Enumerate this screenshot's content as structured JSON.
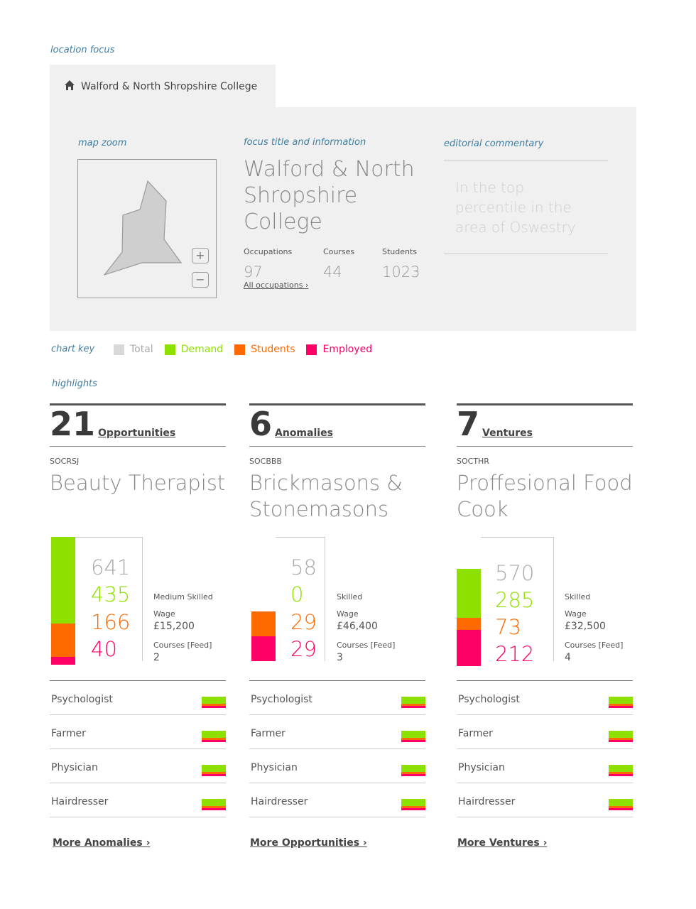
{
  "notes": {
    "location_focus": "location focus",
    "map_zoom": "map zoom",
    "focus_title_info": "focus title and information",
    "editorial_commentary": "editorial commentary",
    "chart_key": "chart key",
    "highlights": "highlights"
  },
  "location": {
    "tab_label": "Walford & North Shropshire College",
    "title": "Walford & North Shropshire College",
    "stats": [
      {
        "label": "Occupations",
        "value": "97"
      },
      {
        "label": "Courses",
        "value": "44"
      },
      {
        "label": "Students",
        "value": "1023"
      }
    ],
    "all_occupations_link": "All occupations ›",
    "commentary": "In the top percentile in the area of Oswestry",
    "zoom_in": "+",
    "zoom_out": "−"
  },
  "chart_key": [
    {
      "label": "Total",
      "color": "#d9d9d9",
      "text_color": "#aaaaaa"
    },
    {
      "label": "Demand",
      "color": "#8ee000",
      "text_color": "#8ee000"
    },
    {
      "label": "Students",
      "color": "#ff6a00",
      "text_color": "#ff6a00"
    },
    {
      "label": "Employed",
      "color": "#ff0066",
      "text_color": "#ff0066"
    }
  ],
  "colors": {
    "demand": "#8ee000",
    "students": "#ff6a00",
    "employed": "#ff0066",
    "total": "#aaaaaa"
  },
  "columns": [
    {
      "count": "21",
      "label": "Opportunities",
      "code": "SOCRSJ",
      "occupation": "Beauty Therapist",
      "values": {
        "total": "641",
        "demand": "435",
        "students": "166",
        "employed": "40"
      },
      "skill": "Medium Skilled",
      "wage_label": "Wage",
      "wage": "£15,200",
      "courses_label": "Courses [Feed]",
      "courses": "2",
      "list": [
        "Psychologist",
        "Farmer",
        "Physician",
        "Hairdresser"
      ],
      "more": "More Anomalies ›"
    },
    {
      "count": "6",
      "label": "Anomalies",
      "code": "SOCBBB",
      "occupation": "Brickmasons & Stonemasons",
      "values": {
        "total": "58",
        "demand": "0",
        "students": "29",
        "employed": "29"
      },
      "skill": "Skilled",
      "wage_label": "Wage",
      "wage": "£46,400",
      "courses_label": "Courses [Feed]",
      "courses": "3",
      "list": [
        "Psychologist",
        "Farmer",
        "Physician",
        "Hairdresser"
      ],
      "more": "More Opportunities ›"
    },
    {
      "count": "7",
      "label": "Ventures",
      "code": "SOCTHR",
      "occupation": "Proffesional Food Cook",
      "values": {
        "total": "570",
        "demand": "285",
        "students": "73",
        "employed": "212"
      },
      "skill": "Skilled",
      "wage_label": "Wage",
      "wage": "£32,500",
      "courses_label": "Courses [Feed]",
      "courses": "4",
      "list": [
        "Psychologist",
        "Farmer",
        "Physician",
        "Hairdresser"
      ],
      "more": "More Ventures ›"
    }
  ]
}
